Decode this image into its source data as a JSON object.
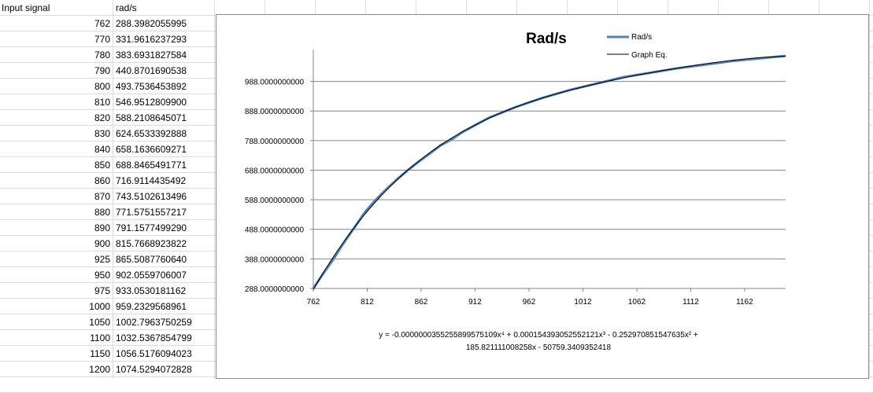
{
  "sheet": {
    "headers": {
      "a": "Input signal",
      "b": "rad/s"
    },
    "rows": [
      {
        "input": "762",
        "rads": "288.3982055995"
      },
      {
        "input": "770",
        "rads": "331.9616237293"
      },
      {
        "input": "780",
        "rads": "383.6931827584"
      },
      {
        "input": "790",
        "rads": "440.8701690538"
      },
      {
        "input": "800",
        "rads": "493.7536453892"
      },
      {
        "input": "810",
        "rads": "546.9512809900"
      },
      {
        "input": "820",
        "rads": "588.2108645071"
      },
      {
        "input": "830",
        "rads": "624.6533392888"
      },
      {
        "input": "840",
        "rads": "658.1636609271"
      },
      {
        "input": "850",
        "rads": "688.8465491771"
      },
      {
        "input": "860",
        "rads": "716.9114435492"
      },
      {
        "input": "870",
        "rads": "743.5102613496"
      },
      {
        "input": "880",
        "rads": "771.5751557217"
      },
      {
        "input": "890",
        "rads": "791.1577499290"
      },
      {
        "input": "900",
        "rads": "815.7668923822"
      },
      {
        "input": "925",
        "rads": "865.5087760640"
      },
      {
        "input": "950",
        "rads": "902.0559706007"
      },
      {
        "input": "975",
        "rads": "933.0530181162"
      },
      {
        "input": "1000",
        "rads": "959.2329568961"
      },
      {
        "input": "1050",
        "rads": "1002.7963750259"
      },
      {
        "input": "1100",
        "rads": "1032.5367854799"
      },
      {
        "input": "1150",
        "rads": "1056.5176094023"
      },
      {
        "input": "1200",
        "rads": "1074.5294072828"
      }
    ]
  },
  "chart_data": {
    "type": "line",
    "title": "Rad/s",
    "xlabel": "",
    "ylabel": "",
    "xlim": [
      762,
      1200
    ],
    "ylim": [
      288,
      1080
    ],
    "x_ticks": [
      762,
      812,
      862,
      912,
      962,
      1012,
      1062,
      1112,
      1162
    ],
    "x_tick_labels": [
      "762",
      "812",
      "862",
      "912",
      "962",
      "1012",
      "1062",
      "1112",
      "1162"
    ],
    "y_ticks": [
      288,
      388,
      488,
      588,
      688,
      788,
      888,
      988
    ],
    "y_tick_labels": [
      "288.0000000000",
      "388.0000000000",
      "488.0000000000",
      "588.0000000000",
      "688.0000000000",
      "788.0000000000",
      "888.0000000000",
      "988.0000000000"
    ],
    "grid": true,
    "legend_position": "top-right",
    "series": [
      {
        "name": "Rad/s",
        "color": "#4f81bd",
        "x": [
          762,
          770,
          780,
          790,
          800,
          810,
          820,
          830,
          840,
          850,
          860,
          870,
          880,
          890,
          900,
          925,
          950,
          975,
          1000,
          1050,
          1100,
          1150,
          1200
        ],
        "values": [
          288.3982055995,
          331.9616237293,
          383.6931827584,
          440.8701690538,
          493.7536453892,
          546.95128099,
          588.2108645071,
          624.6533392888,
          658.1636609271,
          688.8465491771,
          716.9114435492,
          743.5102613496,
          771.5751557217,
          791.157749929,
          815.7668923822,
          865.508776064,
          902.0559706007,
          933.0530181162,
          959.2329568961,
          1002.7963750259,
          1032.5367854799,
          1056.5176094023,
          1074.5294072828
        ]
      },
      {
        "name": "Graph Eq.",
        "color": "#000000",
        "polynomial": [
          -50759.3409352418,
          185.821111008258,
          -0.252970851547635,
          0.000154393052552121,
          -3.55255899575109e-08
        ]
      }
    ],
    "equation_line1": "y = -0.0000000355255899575109x⁴ + 0.000154393052552121x³ - 0.252970851547635x² +",
    "equation_line2": "185.821111008258x - 50759.3409352418"
  }
}
